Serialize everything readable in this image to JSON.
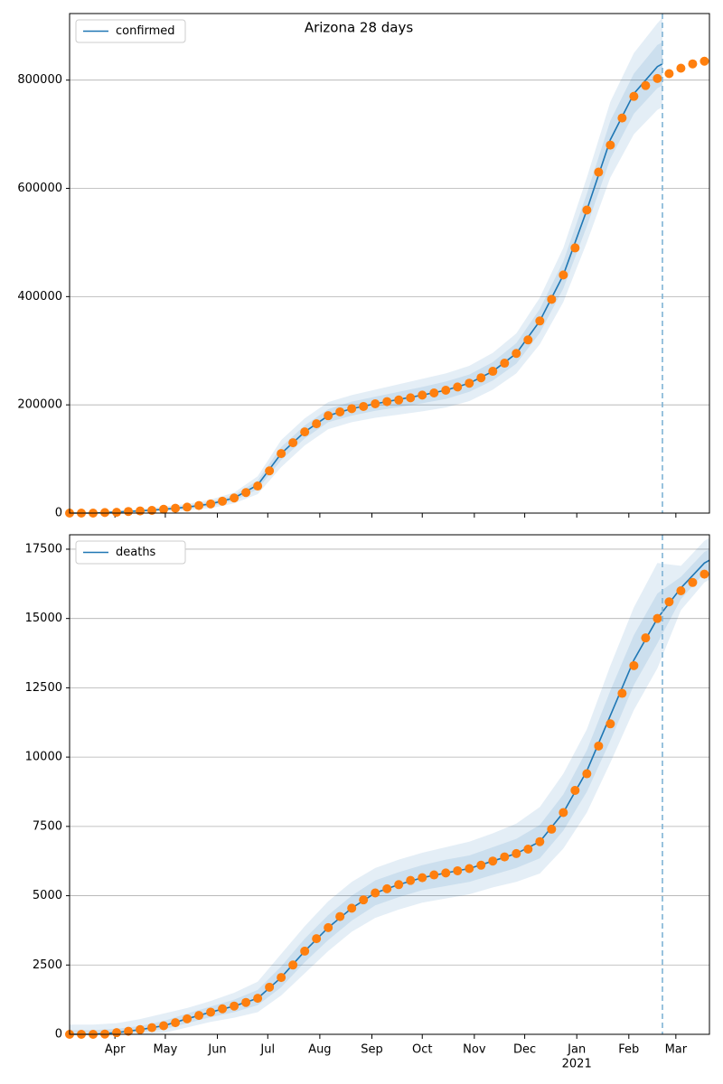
{
  "chart_data": [
    {
      "type": "line",
      "title": "Arizona 28 days",
      "xlim": [
        64,
        445
      ],
      "ylim": [
        0,
        923000
      ],
      "yticks": [
        0,
        200000,
        400000,
        600000,
        800000
      ],
      "grid": "y",
      "legend": "upper left",
      "vline": 417,
      "vline_color": "#7fb3d5",
      "series": [
        {
          "name": "confirmed",
          "color": "#1f77b4",
          "x": [
            64,
            78,
            92,
            106,
            120,
            134,
            148,
            162,
            176,
            190,
            204,
            218,
            232,
            246,
            260,
            274,
            288,
            302,
            316,
            330,
            344,
            358,
            372,
            386,
            400,
            414,
            417
          ],
          "values": [
            0,
            0,
            2000,
            4000,
            7000,
            11000,
            17000,
            28000,
            52000,
            110000,
            150000,
            180000,
            193000,
            202000,
            210000,
            218000,
            227000,
            240000,
            262000,
            295000,
            355000,
            440000,
            560000,
            690000,
            775000,
            825000,
            830000
          ],
          "lower": [
            0,
            0,
            0,
            1000,
            3000,
            5000,
            9000,
            18000,
            35000,
            85000,
            125000,
            155000,
            168000,
            176000,
            182000,
            188000,
            195000,
            207000,
            228000,
            258000,
            312000,
            390000,
            500000,
            620000,
            700000,
            745000,
            750000
          ],
          "upper": [
            0,
            0,
            5000,
            8000,
            12000,
            17000,
            25000,
            38000,
            68000,
            135000,
            175000,
            205000,
            218000,
            228000,
            238000,
            248000,
            258000,
            272000,
            296000,
            332000,
            398000,
            490000,
            620000,
            760000,
            850000,
            905000,
            915000
          ],
          "lower_inner": [
            0,
            0,
            1000,
            2500,
            5000,
            8000,
            13000,
            23000,
            44000,
            98000,
            138000,
            168000,
            180000,
            189000,
            196000,
            203000,
            211000,
            224000,
            245000,
            276000,
            333000,
            415000,
            530000,
            655000,
            738000,
            785000,
            790000
          ],
          "upper_inner": [
            0,
            0,
            3000,
            5500,
            9000,
            14000,
            21000,
            33000,
            60000,
            122000,
            162000,
            192000,
            206000,
            215000,
            224000,
            233000,
            243000,
            256000,
            279000,
            314000,
            377000,
            465000,
            590000,
            725000,
            812000,
            865000,
            870000
          ]
        }
      ],
      "observed": {
        "color": "#ff7f0e",
        "x": [
          64,
          71,
          78,
          85,
          92,
          99,
          106,
          113,
          120,
          127,
          134,
          141,
          148,
          155,
          162,
          169,
          176,
          183,
          190,
          197,
          204,
          211,
          218,
          225,
          232,
          239,
          246,
          253,
          260,
          267,
          274,
          281,
          288,
          295,
          302,
          309,
          316,
          323,
          330,
          337,
          344,
          351,
          358,
          365,
          372,
          379,
          386,
          393,
          400,
          407,
          414,
          421,
          428,
          435,
          442
        ],
        "values": [
          0,
          0,
          0,
          1000,
          1500,
          3000,
          4000,
          5000,
          7000,
          9000,
          11000,
          14000,
          17000,
          22000,
          28000,
          38000,
          50000,
          78000,
          110000,
          130000,
          150000,
          165000,
          180000,
          187000,
          193000,
          197000,
          202000,
          206000,
          209000,
          213000,
          218000,
          222000,
          227000,
          233000,
          240000,
          250000,
          262000,
          277000,
          295000,
          320000,
          355000,
          395000,
          440000,
          490000,
          560000,
          630000,
          680000,
          730000,
          770000,
          790000,
          803000,
          812000,
          822000,
          830000,
          835000
        ]
      }
    },
    {
      "type": "line",
      "xlim": [
        64,
        445
      ],
      "ylim": [
        0,
        18020
      ],
      "yticks": [
        0,
        2500,
        5000,
        7500,
        10000,
        12500,
        15000,
        17500
      ],
      "grid": "y",
      "legend": "upper left",
      "vline": 417,
      "vline_color": "#7fb3d5",
      "xticks": [
        {
          "value": 91,
          "label": "Apr"
        },
        {
          "value": 121,
          "label": "May"
        },
        {
          "value": 152,
          "label": "Jun"
        },
        {
          "value": 182,
          "label": "Jul"
        },
        {
          "value": 213,
          "label": "Aug"
        },
        {
          "value": 244,
          "label": "Sep"
        },
        {
          "value": 274,
          "label": "Oct"
        },
        {
          "value": 305,
          "label": "Nov"
        },
        {
          "value": 335,
          "label": "Dec"
        },
        {
          "value": 366,
          "label": "Jan"
        },
        {
          "value": 397,
          "label": "Feb"
        },
        {
          "value": 425,
          "label": "Mar"
        }
      ],
      "year_label": "2021",
      "series": [
        {
          "name": "deaths",
          "color": "#1f77b4",
          "x": [
            64,
            78,
            92,
            106,
            120,
            134,
            148,
            162,
            176,
            190,
            204,
            218,
            232,
            246,
            260,
            274,
            288,
            302,
            316,
            330,
            344,
            358,
            372,
            386,
            400,
            414,
            428,
            442,
            445
          ],
          "values": [
            0,
            0,
            60,
            170,
            310,
            560,
            800,
            1020,
            1300,
            2050,
            3000,
            3850,
            4550,
            5100,
            5400,
            5650,
            5820,
            5980,
            6250,
            6520,
            6950,
            8000,
            9500,
            11500,
            13500,
            15000,
            16100,
            17000,
            17100
          ],
          "lower": [
            0,
            0,
            0,
            0,
            50,
            250,
            450,
            600,
            800,
            1400,
            2200,
            3000,
            3700,
            4200,
            4500,
            4750,
            4900,
            5050,
            5300,
            5500,
            5800,
            6700,
            8000,
            9800,
            11700,
            13200,
            15300,
            16300,
            16400
          ],
          "upper": [
            350,
            350,
            400,
            550,
            750,
            950,
            1200,
            1500,
            1900,
            2900,
            3900,
            4800,
            5500,
            6000,
            6300,
            6550,
            6750,
            6950,
            7250,
            7600,
            8200,
            9400,
            11000,
            13300,
            15400,
            17000,
            16900,
            17800,
            17900
          ],
          "lower_inner": [
            0,
            0,
            20,
            80,
            180,
            400,
            620,
            800,
            1050,
            1700,
            2600,
            3400,
            4100,
            4650,
            4950,
            5200,
            5350,
            5500,
            5750,
            6000,
            6350,
            7350,
            8750,
            10600,
            12600,
            14100,
            15700,
            16650,
            16750
          ],
          "upper_inner": [
            150,
            150,
            200,
            300,
            480,
            750,
            1000,
            1250,
            1600,
            2450,
            3450,
            4300,
            5000,
            5550,
            5850,
            6100,
            6300,
            6450,
            6750,
            7050,
            7550,
            8650,
            10250,
            12400,
            14400,
            15900,
            16500,
            17400,
            17500
          ]
        }
      ],
      "observed": {
        "color": "#ff7f0e",
        "x": [
          64,
          71,
          78,
          85,
          92,
          99,
          106,
          113,
          120,
          127,
          134,
          141,
          148,
          155,
          162,
          169,
          176,
          183,
          190,
          197,
          204,
          211,
          218,
          225,
          232,
          239,
          246,
          253,
          260,
          267,
          274,
          281,
          288,
          295,
          302,
          309,
          316,
          323,
          330,
          337,
          344,
          351,
          358,
          365,
          372,
          379,
          386,
          393,
          400,
          407,
          414,
          421,
          428,
          435,
          442
        ],
        "values": [
          0,
          0,
          0,
          10,
          60,
          110,
          170,
          240,
          310,
          420,
          560,
          680,
          800,
          920,
          1020,
          1150,
          1300,
          1700,
          2050,
          2500,
          3000,
          3450,
          3850,
          4250,
          4550,
          4850,
          5100,
          5250,
          5400,
          5550,
          5650,
          5750,
          5820,
          5900,
          5980,
          6100,
          6250,
          6400,
          6520,
          6680,
          6950,
          7400,
          8000,
          8800,
          9400,
          10400,
          11200,
          12300,
          13300,
          14300,
          15000,
          15600,
          16000,
          16300,
          16600
        ]
      }
    }
  ]
}
